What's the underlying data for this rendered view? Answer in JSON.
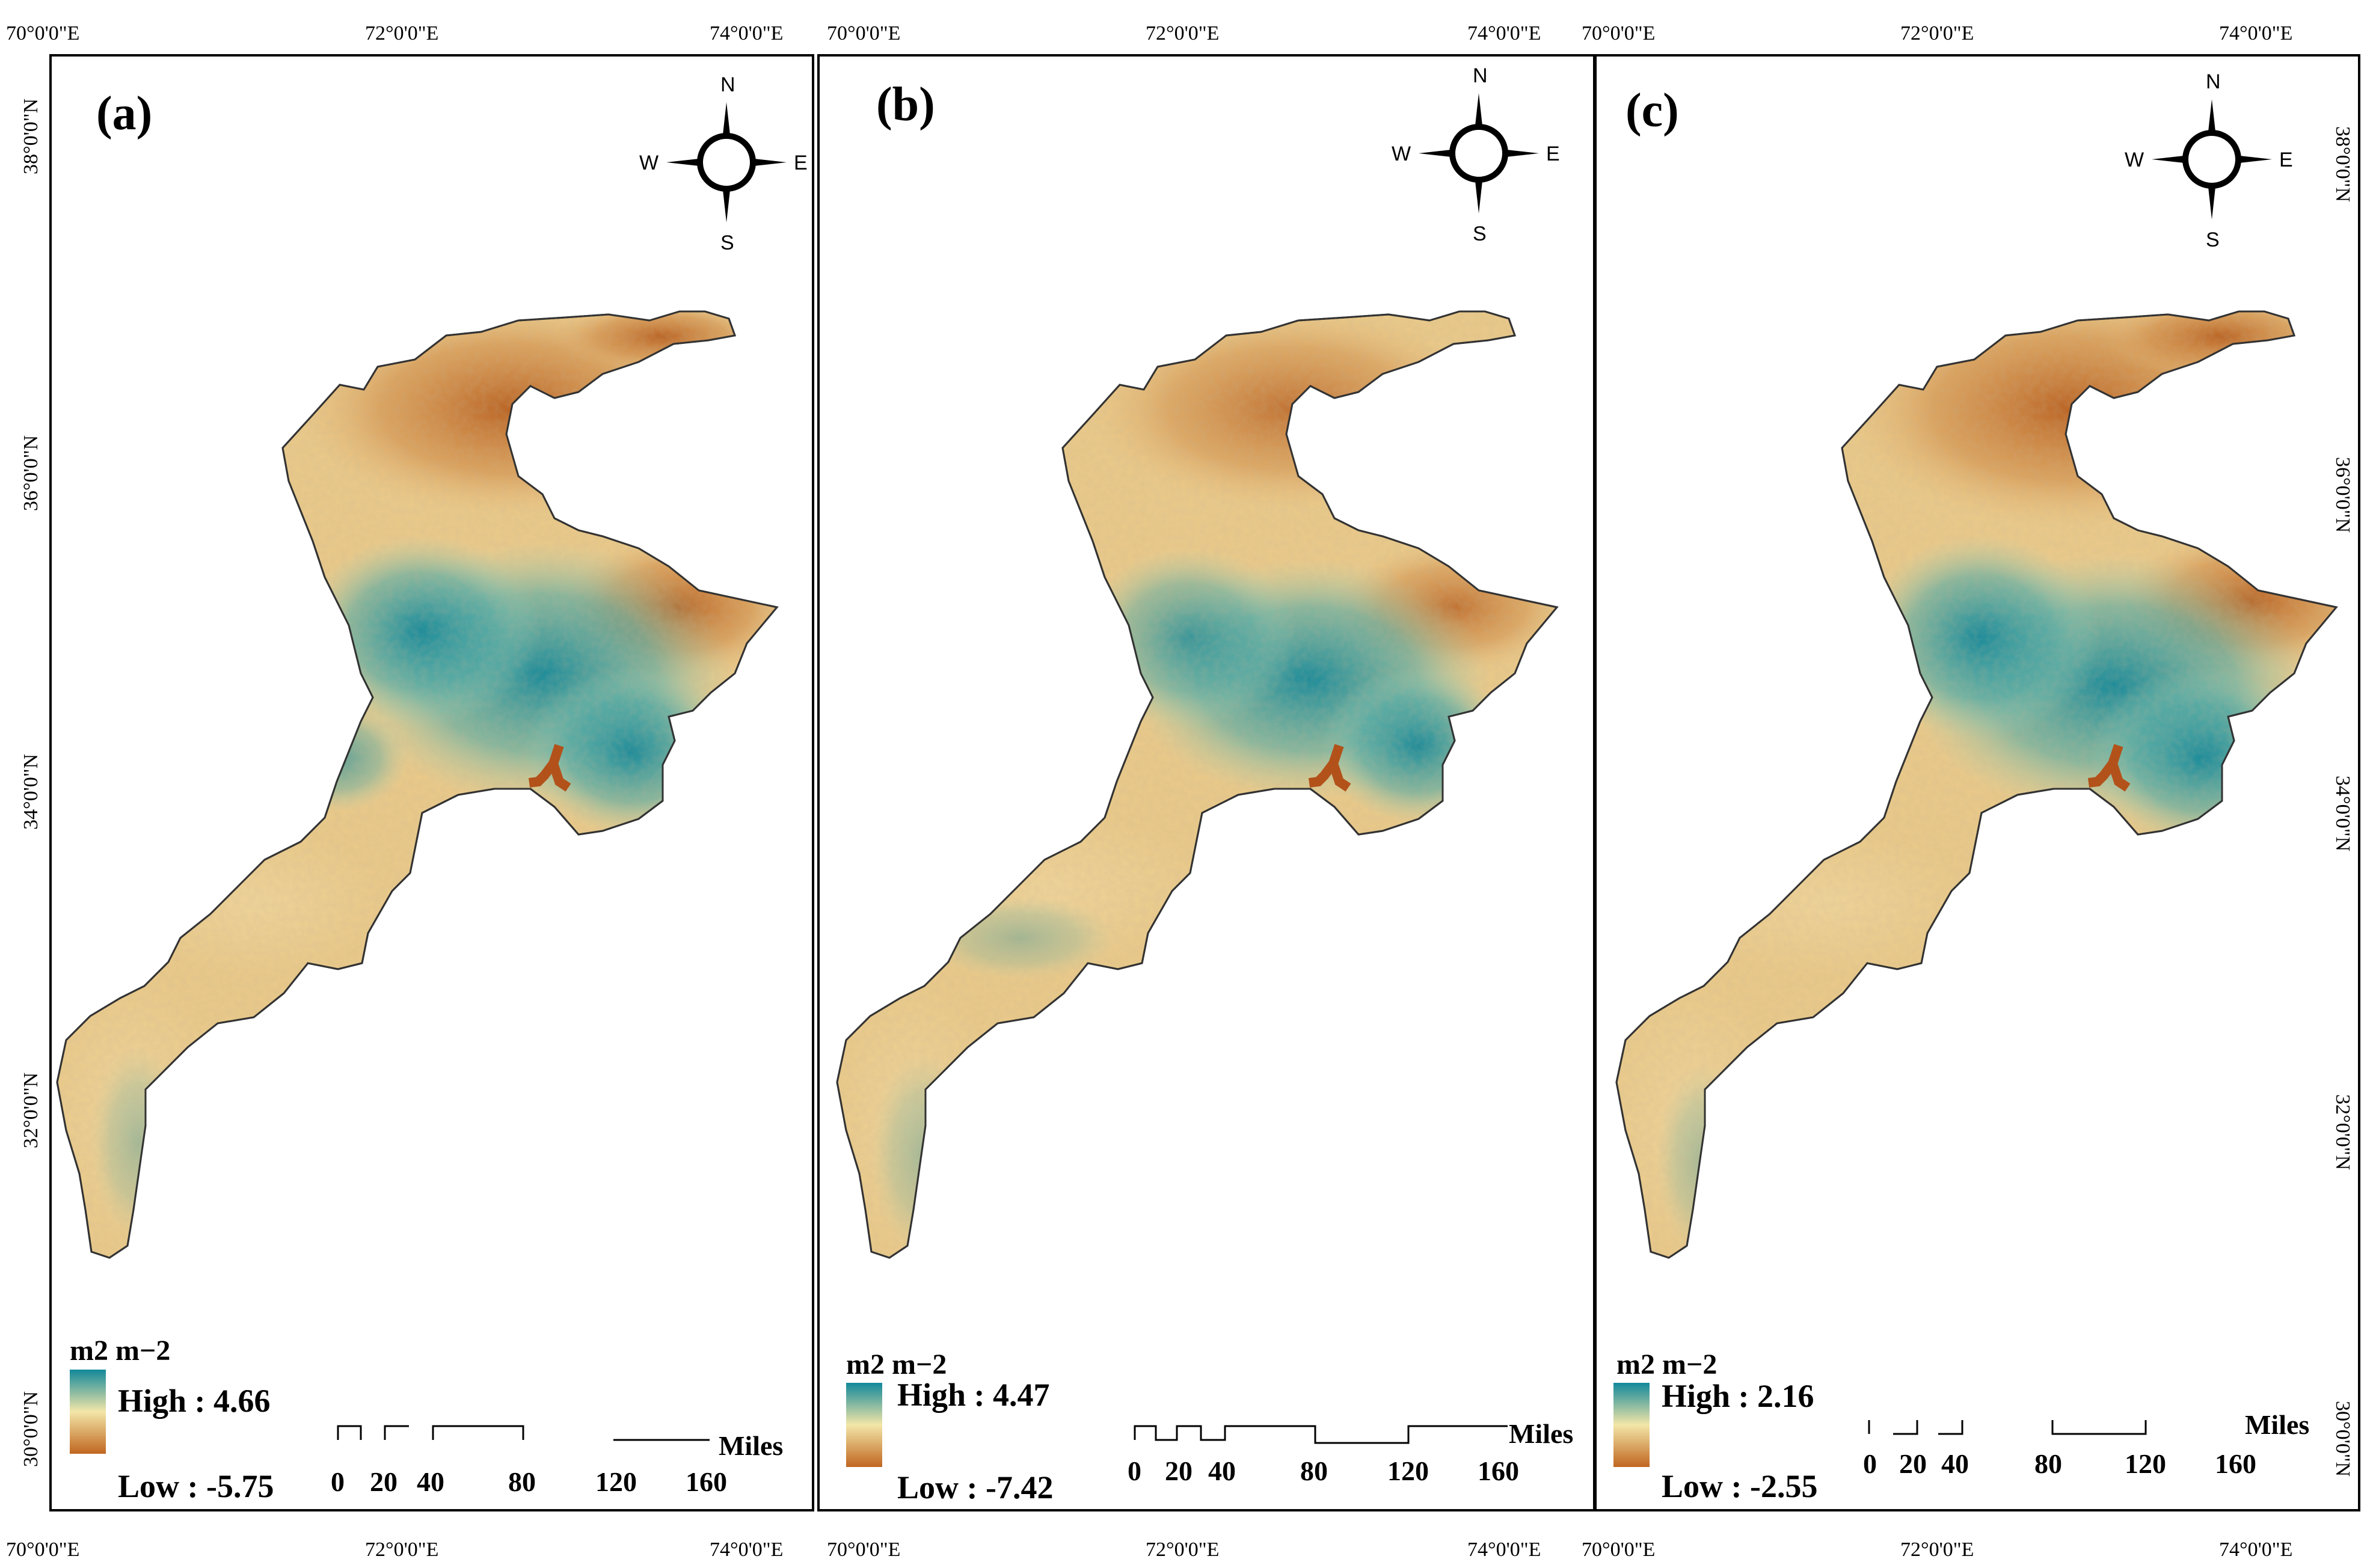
{
  "axis": {
    "top_lon": [
      "70°0'0\"E",
      "72°0'0\"E",
      "74°0'0\"E"
    ],
    "bottom_lon": [
      "70°0'0\"E",
      "72°0'0\"E",
      "74°0'0\"E"
    ],
    "lat": [
      "38°0'0\"N",
      "36°0'0\"N",
      "34°0'0\"N",
      "32°0'0\"N",
      "30°0'0\"N"
    ]
  },
  "compass": {
    "n": "N",
    "s": "S",
    "e": "E",
    "w": "W"
  },
  "colors": {
    "high": "#12889a",
    "mid": "#f3e6a8",
    "low": "#c0661f",
    "river": "#b2521a"
  },
  "panels": [
    {
      "label": "(a)",
      "unit": "m2 m−2",
      "high": "High : 4.66",
      "low": "Low : -5.75",
      "scale": {
        "ticks": [
          "0",
          "20",
          "40",
          "80",
          "120",
          "160"
        ],
        "unit": "Miles"
      }
    },
    {
      "label": "(b)",
      "unit": "m2 m−2",
      "high": "High : 4.47",
      "low": "Low : -7.42",
      "scale": {
        "ticks": [
          "0",
          "20",
          "40",
          "80",
          "120",
          "160"
        ],
        "unit": "Miles"
      }
    },
    {
      "label": "(c)",
      "unit": "m2 m−2",
      "high": "High : 2.16",
      "low": "Low : -2.55",
      "scale": {
        "ticks": [
          "0",
          "20",
          "40",
          "80",
          "120",
          "160"
        ],
        "unit": "Miles"
      }
    }
  ]
}
